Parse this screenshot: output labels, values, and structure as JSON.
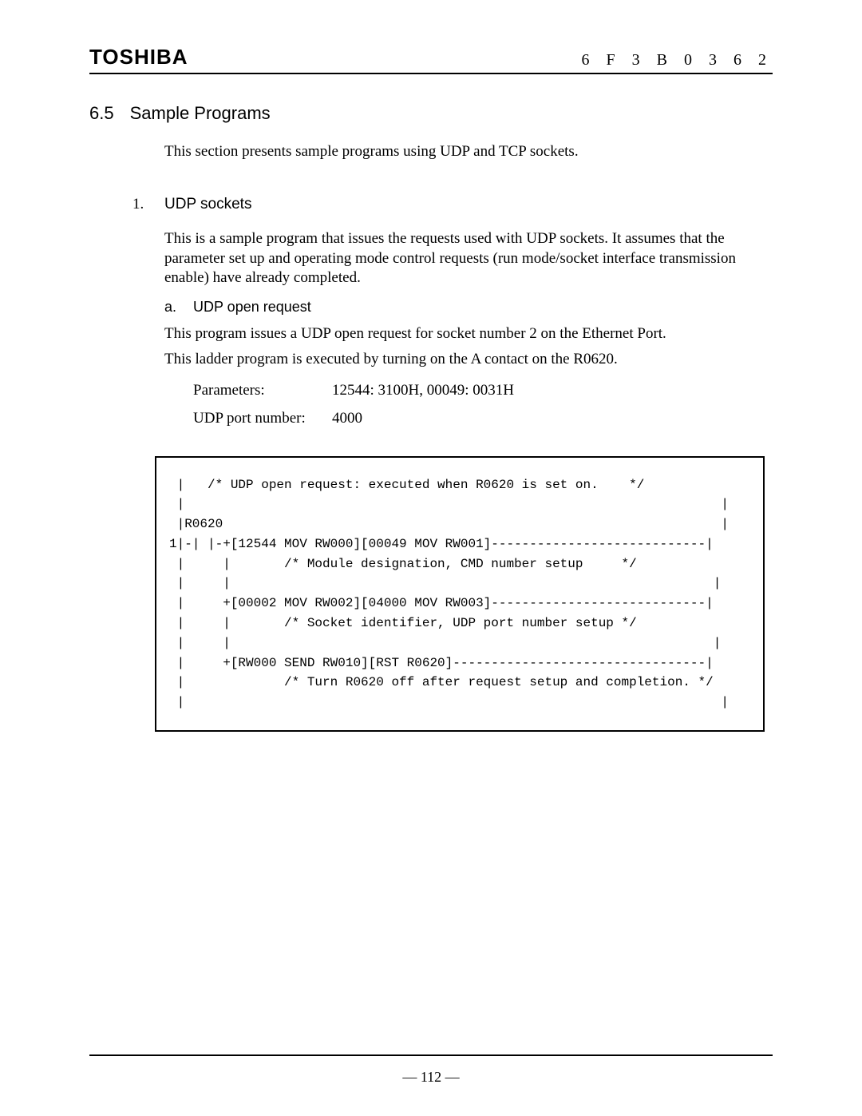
{
  "header": {
    "brand": "TOSHIBA",
    "doc_code": "6 F 3 B 0 3 6 2"
  },
  "section": {
    "number": "6.5",
    "title": "Sample Programs",
    "intro": "This section presents sample programs using UDP and TCP sockets."
  },
  "list": {
    "item1": {
      "num": "1.",
      "label": "UDP sockets",
      "desc": "This is a sample program that issues the requests used with UDP sockets. It assumes that the parameter set up and operating mode control requests (run mode/socket interface transmission enable) have already completed.",
      "sub_a": {
        "num": "a.",
        "label": "UDP open request",
        "line1": "This program issues a UDP open request for socket number 2 on the Ethernet Port.",
        "line2": "This ladder program is executed by turning on the A contact on the R0620.",
        "params_label": "Parameters:",
        "params_value": "12544: 3100H, 00049: 0031H",
        "port_label": "UDP port number:",
        "port_value": "4000"
      }
    }
  },
  "code": " |   /* UDP open request: executed when R0620 is set on.    */\n |                                                                      |\n |R0620                                                                 |\n1|-| |-+[12544 MOV RW000][00049 MOV RW001]----------------------------|\n |     |       /* Module designation, CMD number setup     */\n |     |                                                               |\n |     +[00002 MOV RW002][04000 MOV RW003]----------------------------|\n |     |       /* Socket identifier, UDP port number setup */\n |     |                                                               |\n |     +[RW000 SEND RW010][RST R0620]---------------------------------|\n |             /* Turn R0620 off after request setup and completion. */\n |                                                                      |",
  "footer": {
    "page": "— 112 —"
  }
}
